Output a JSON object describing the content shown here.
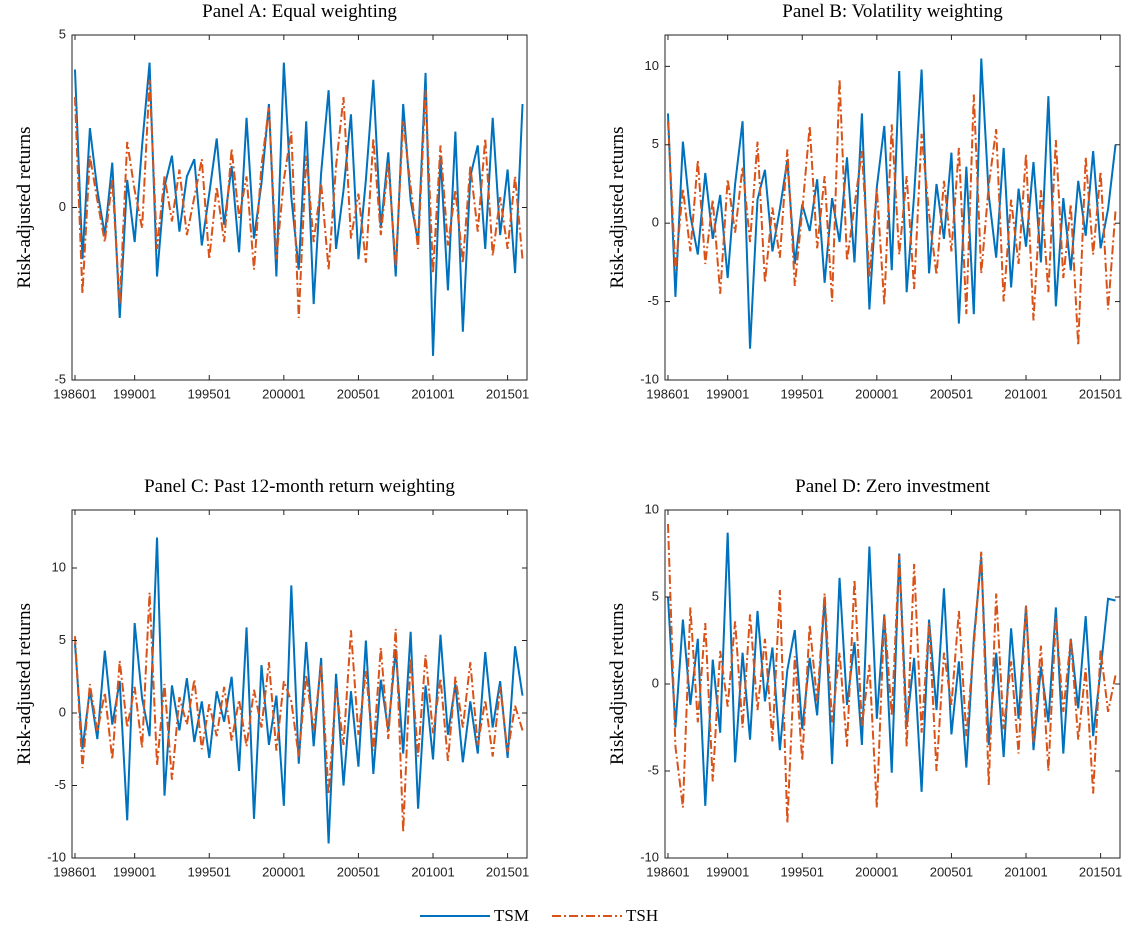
{
  "chart_data": [
    {
      "type": "line",
      "title": "Panel A: Equal weighting",
      "y_label": "Risk-adjusted returns",
      "x": [
        1986,
        1986.5,
        1987,
        1987.5,
        1988,
        1988.5,
        1989,
        1989.5,
        1990,
        1990.5,
        1991,
        1991.5,
        1992,
        1992.5,
        1993,
        1993.5,
        1994,
        1994.5,
        1995,
        1995.5,
        1996,
        1996.5,
        1997,
        1997.5,
        1998,
        1998.5,
        1999,
        1999.5,
        2000,
        2000.5,
        2001,
        2001.5,
        2002,
        2002.5,
        2003,
        2003.5,
        2004,
        2004.5,
        2005,
        2005.5,
        2006,
        2006.5,
        2007,
        2007.5,
        2008,
        2008.5,
        2009,
        2009.5,
        2010,
        2010.5,
        2011,
        2011.5,
        2012,
        2012.5,
        2013,
        2013.5,
        2014,
        2014.5,
        2015,
        2015.5,
        2016
      ],
      "xlim": [
        1985.8,
        2016.3
      ],
      "xticks": [
        {
          "value": 1986,
          "label": "198601"
        },
        {
          "value": 1990,
          "label": "199001"
        },
        {
          "value": 1995,
          "label": "199501"
        },
        {
          "value": 2000,
          "label": "200001"
        },
        {
          "value": 2005,
          "label": "200501"
        },
        {
          "value": 2010,
          "label": "201001"
        },
        {
          "value": 2015,
          "label": "201501"
        }
      ],
      "ylim": [
        -5,
        5
      ],
      "yticks": [
        -5,
        0,
        5
      ],
      "series": [
        {
          "name": "TSM",
          "color": "#0072BD",
          "line_style": "solid",
          "values": [
            4.0,
            -1.5,
            2.3,
            0.5,
            -0.8,
            1.3,
            -3.2,
            0.8,
            -1.0,
            1.8,
            4.2,
            -2.0,
            0.6,
            1.5,
            -0.7,
            0.9,
            1.4,
            -1.1,
            0.4,
            2.0,
            -0.5,
            1.2,
            -1.3,
            2.6,
            -0.9,
            0.7,
            3.0,
            -2.0,
            4.2,
            0.3,
            -1.8,
            2.5,
            -2.8,
            1.0,
            3.4,
            -1.2,
            0.5,
            2.7,
            -1.5,
            0.8,
            3.7,
            -0.6,
            1.6,
            -2.0,
            3.0,
            0.2,
            -1.0,
            3.9,
            -4.3,
            1.5,
            -2.4,
            2.2,
            -3.6,
            0.9,
            1.8,
            -1.2,
            2.6,
            -0.8,
            1.1,
            -1.9,
            3.0
          ]
        },
        {
          "name": "TSH",
          "color": "#D95319",
          "line_style": "dash-dot",
          "values": [
            3.2,
            -2.5,
            1.5,
            0.2,
            -1.0,
            0.8,
            -2.8,
            1.9,
            0.5,
            -0.6,
            3.7,
            -1.2,
            0.9,
            -0.4,
            1.1,
            -0.8,
            0.3,
            1.4,
            -1.5,
            0.6,
            -1.0,
            1.7,
            -0.3,
            0.9,
            -1.8,
            1.2,
            2.9,
            -1.5,
            0.8,
            2.2,
            -3.2,
            1.5,
            -1.0,
            0.7,
            -1.8,
            1.2,
            3.2,
            -0.9,
            0.4,
            -1.6,
            2.0,
            -0.8,
            1.3,
            -1.7,
            2.5,
            0.6,
            -1.2,
            3.4,
            -1.9,
            1.8,
            -1.1,
            0.5,
            -1.6,
            1.2,
            -0.7,
            2.0,
            -1.4,
            0.3,
            -1.2,
            0.9,
            -1.5
          ]
        }
      ]
    },
    {
      "type": "line",
      "title": "Panel B: Volatility weighting",
      "y_label": "Risk-adjusted returns",
      "x": [
        1986,
        1986.5,
        1987,
        1987.5,
        1988,
        1988.5,
        1989,
        1989.5,
        1990,
        1990.5,
        1991,
        1991.5,
        1992,
        1992.5,
        1993,
        1993.5,
        1994,
        1994.5,
        1995,
        1995.5,
        1996,
        1996.5,
        1997,
        1997.5,
        1998,
        1998.5,
        1999,
        1999.5,
        2000,
        2000.5,
        2001,
        2001.5,
        2002,
        2002.5,
        2003,
        2003.5,
        2004,
        2004.5,
        2005,
        2005.5,
        2006,
        2006.5,
        2007,
        2007.5,
        2008,
        2008.5,
        2009,
        2009.5,
        2010,
        2010.5,
        2011,
        2011.5,
        2012,
        2012.5,
        2013,
        2013.5,
        2014,
        2014.5,
        2015,
        2015.5,
        2016
      ],
      "xlim": [
        1985.8,
        2016.3
      ],
      "xticks": [
        {
          "value": 1986,
          "label": "198601"
        },
        {
          "value": 1990,
          "label": "199001"
        },
        {
          "value": 1995,
          "label": "199501"
        },
        {
          "value": 2000,
          "label": "200001"
        },
        {
          "value": 2005,
          "label": "200501"
        },
        {
          "value": 2010,
          "label": "201001"
        },
        {
          "value": 2015,
          "label": "201501"
        }
      ],
      "ylim": [
        -10,
        12
      ],
      "yticks": [
        -10,
        -5,
        0,
        5,
        10
      ],
      "series": [
        {
          "name": "TSM",
          "color": "#0072BD",
          "line_style": "solid",
          "values": [
            7.0,
            -4.7,
            5.2,
            0.5,
            -2.0,
            3.2,
            -1.0,
            1.8,
            -3.5,
            2.5,
            6.5,
            -8.0,
            1.5,
            3.4,
            -1.8,
            0.9,
            4.0,
            -2.6,
            1.2,
            -0.5,
            2.8,
            -3.8,
            1.6,
            -1.2,
            4.2,
            -2.5,
            7.0,
            -5.5,
            2.3,
            6.2,
            -3.0,
            9.7,
            -4.4,
            1.8,
            9.8,
            -3.2,
            2.5,
            -1.0,
            4.5,
            -6.4,
            3.6,
            -5.8,
            10.5,
            1.8,
            -2.2,
            4.8,
            -4.1,
            2.2,
            -1.5,
            3.9,
            -2.5,
            8.1,
            -5.3,
            1.6,
            -3.0,
            2.7,
            -0.8,
            4.6,
            -1.6,
            0.9,
            5.0
          ]
        },
        {
          "name": "TSH",
          "color": "#D95319",
          "line_style": "dash-dot",
          "values": [
            6.5,
            -3.0,
            2.2,
            -1.8,
            4.0,
            -2.6,
            1.5,
            -4.5,
            2.8,
            -0.6,
            3.6,
            -1.2,
            5.2,
            -3.8,
            1.0,
            -2.2,
            4.7,
            -4.0,
            0.8,
            6.2,
            -1.6,
            3.0,
            -5.0,
            9.2,
            -2.4,
            1.1,
            4.6,
            -3.4,
            2.2,
            -5.2,
            6.3,
            -2.0,
            3.0,
            -4.2,
            5.7,
            0.6,
            -3.3,
            2.7,
            -1.8,
            4.8,
            -5.8,
            8.2,
            -3.2,
            2.4,
            6.0,
            -5.0,
            1.5,
            -2.6,
            4.4,
            -6.2,
            2.1,
            -4.4,
            5.3,
            -3.5,
            1.2,
            -7.8,
            4.2,
            -2.0,
            3.3,
            -5.5,
            0.8
          ]
        }
      ]
    },
    {
      "type": "line",
      "title": "Panel C: Past 12-month return weighting",
      "y_label": "Risk-adjusted returns",
      "x": [
        1986,
        1986.5,
        1987,
        1987.5,
        1988,
        1988.5,
        1989,
        1989.5,
        1990,
        1990.5,
        1991,
        1991.5,
        1992,
        1992.5,
        1993,
        1993.5,
        1994,
        1994.5,
        1995,
        1995.5,
        1996,
        1996.5,
        1997,
        1997.5,
        1998,
        1998.5,
        1999,
        1999.5,
        2000,
        2000.5,
        2001,
        2001.5,
        2002,
        2002.5,
        2003,
        2003.5,
        2004,
        2004.5,
        2005,
        2005.5,
        2006,
        2006.5,
        2007,
        2007.5,
        2008,
        2008.5,
        2009,
        2009.5,
        2010,
        2010.5,
        2011,
        2011.5,
        2012,
        2012.5,
        2013,
        2013.5,
        2014,
        2014.5,
        2015,
        2015.5,
        2016
      ],
      "xlim": [
        1985.8,
        2016.3
      ],
      "xticks": [
        {
          "value": 1986,
          "label": "198601"
        },
        {
          "value": 1990,
          "label": "199001"
        },
        {
          "value": 1995,
          "label": "199501"
        },
        {
          "value": 2000,
          "label": "200001"
        },
        {
          "value": 2005,
          "label": "200501"
        },
        {
          "value": 2010,
          "label": "201001"
        },
        {
          "value": 2015,
          "label": "201501"
        }
      ],
      "ylim": [
        -10,
        14
      ],
      "yticks": [
        -10,
        -5,
        0,
        5,
        10
      ],
      "series": [
        {
          "name": "TSM",
          "color": "#0072BD",
          "line_style": "solid",
          "values": [
            4.8,
            -2.5,
            1.6,
            -1.8,
            4.3,
            -0.8,
            2.2,
            -7.4,
            6.2,
            1.0,
            -1.6,
            12.1,
            -5.7,
            1.9,
            -1.2,
            2.4,
            -2.0,
            0.8,
            -3.1,
            1.5,
            -0.6,
            2.5,
            -4.0,
            5.9,
            -7.3,
            3.3,
            -2.2,
            1.2,
            -6.4,
            8.8,
            -3.5,
            4.9,
            -2.3,
            3.8,
            -9.0,
            2.7,
            -5.0,
            1.5,
            -3.7,
            5.0,
            -4.2,
            2.3,
            -1.2,
            4.4,
            -2.8,
            5.6,
            -6.6,
            1.9,
            -3.2,
            5.4,
            -1.5,
            2.0,
            -3.4,
            0.8,
            -2.8,
            4.2,
            -1.0,
            2.2,
            -3.1,
            4.6,
            1.2
          ]
        },
        {
          "name": "TSH",
          "color": "#D95319",
          "line_style": "dash-dot",
          "values": [
            5.3,
            -3.8,
            2.0,
            -1.3,
            1.4,
            -3.2,
            3.6,
            -1.0,
            1.8,
            -2.4,
            8.3,
            -3.6,
            2.0,
            -4.6,
            1.1,
            -0.8,
            2.3,
            -2.5,
            0.6,
            -1.6,
            1.8,
            -1.9,
            0.9,
            -2.3,
            1.6,
            -1.0,
            3.5,
            -2.6,
            2.2,
            0.8,
            -3.0,
            2.6,
            -1.2,
            3.3,
            -5.6,
            1.8,
            -2.2,
            5.7,
            -1.5,
            2.9,
            -2.6,
            4.5,
            -1.8,
            5.8,
            -8.2,
            3.8,
            -3.0,
            4.0,
            -1.4,
            2.4,
            -3.3,
            2.5,
            -1.0,
            3.5,
            -2.2,
            0.9,
            -3.0,
            1.8,
            -2.7,
            0.5,
            -1.2
          ]
        }
      ]
    },
    {
      "type": "line",
      "title": "Panel D: Zero investment",
      "y_label": "Risk-adjusted returns",
      "x": [
        1986,
        1986.5,
        1987,
        1987.5,
        1988,
        1988.5,
        1989,
        1989.5,
        1990,
        1990.5,
        1991,
        1991.5,
        1992,
        1992.5,
        1993,
        1993.5,
        1994,
        1994.5,
        1995,
        1995.5,
        1996,
        1996.5,
        1997,
        1997.5,
        1998,
        1998.5,
        1999,
        1999.5,
        2000,
        2000.5,
        2001,
        2001.5,
        2002,
        2002.5,
        2003,
        2003.5,
        2004,
        2004.5,
        2005,
        2005.5,
        2006,
        2006.5,
        2007,
        2007.5,
        2008,
        2008.5,
        2009,
        2009.5,
        2010,
        2010.5,
        2011,
        2011.5,
        2012,
        2012.5,
        2013,
        2013.5,
        2014,
        2014.5,
        2015,
        2015.5,
        2016
      ],
      "xlim": [
        1985.8,
        2016.3
      ],
      "xticks": [
        {
          "value": 1986,
          "label": "198601"
        },
        {
          "value": 1990,
          "label": "199001"
        },
        {
          "value": 1995,
          "label": "199501"
        },
        {
          "value": 2000,
          "label": "200001"
        },
        {
          "value": 2005,
          "label": "200501"
        },
        {
          "value": 2010,
          "label": "201001"
        },
        {
          "value": 2015,
          "label": "201501"
        }
      ],
      "ylim": [
        -10,
        10
      ],
      "yticks": [
        -10,
        -5,
        0,
        5,
        10
      ],
      "series": [
        {
          "name": "TSM",
          "color": "#0072BD",
          "line_style": "solid",
          "values": [
            5.0,
            -2.5,
            3.7,
            -1.2,
            2.6,
            -7.0,
            1.4,
            -2.8,
            8.7,
            -4.5,
            1.8,
            -3.2,
            4.2,
            -1.0,
            2.1,
            -3.8,
            0.8,
            3.1,
            -2.6,
            1.5,
            -1.8,
            5.0,
            -4.6,
            6.1,
            -1.2,
            2.4,
            -3.5,
            7.9,
            -2.0,
            4.0,
            -5.1,
            7.5,
            -2.4,
            1.5,
            -6.2,
            3.7,
            -1.5,
            5.5,
            -2.9,
            1.3,
            -4.8,
            2.6,
            7.3,
            -3.5,
            1.8,
            -4.2,
            3.2,
            -2.0,
            4.5,
            -3.8,
            1.0,
            -2.2,
            4.4,
            -4.0,
            2.6,
            -1.4,
            3.9,
            -3.0,
            0.8,
            4.9,
            4.8
          ]
        },
        {
          "name": "TSH",
          "color": "#D95319",
          "line_style": "dash-dot",
          "values": [
            9.2,
            -3.6,
            -7.1,
            4.4,
            -2.2,
            3.5,
            -5.6,
            1.9,
            -1.3,
            3.6,
            -2.5,
            4.0,
            -1.5,
            2.6,
            -3.3,
            5.4,
            -8.0,
            1.6,
            -4.4,
            3.4,
            -1.0,
            5.2,
            -2.2,
            1.8,
            -3.6,
            6.0,
            -2.4,
            1.1,
            -7.1,
            4.0,
            -1.8,
            7.4,
            -3.6,
            6.9,
            -2.8,
            3.5,
            -5.0,
            1.8,
            -1.2,
            4.2,
            -3.0,
            2.2,
            7.6,
            -5.8,
            5.2,
            -2.6,
            1.3,
            -4.0,
            4.5,
            -3.4,
            2.2,
            -5.0,
            3.8,
            -1.6,
            2.6,
            -3.2,
            0.9,
            -6.3,
            2.0,
            -1.6,
            0.5
          ]
        }
      ]
    }
  ]
}
